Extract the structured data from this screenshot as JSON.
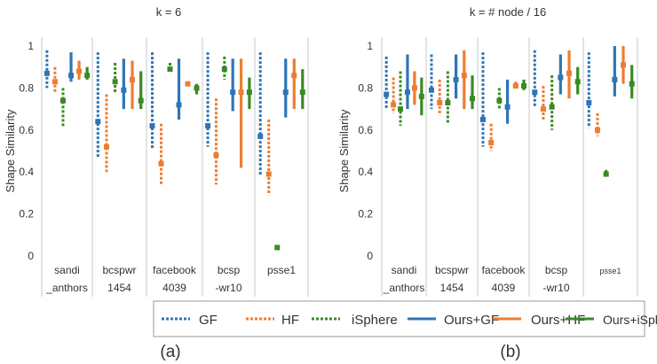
{
  "figure": {
    "caption_a": "(a)",
    "caption_b": "(b)"
  },
  "legend": {
    "items": [
      {
        "label": "GF",
        "color": "#2e75b6",
        "dashed": true
      },
      {
        "label": "HF",
        "color": "#ed7d31",
        "dashed": true
      },
      {
        "label": "iSphere",
        "color": "#3a8a24",
        "dashed": true
      },
      {
        "label": "Ours+GF",
        "color": "#2e75b6",
        "dashed": false
      },
      {
        "label": "Ours+HF",
        "color": "#ed7d31",
        "dashed": false
      },
      {
        "label": "Ours+iSphere",
        "color": "#3a8a24",
        "dashed": false
      }
    ]
  },
  "chart_data": [
    {
      "type": "box",
      "title": "k = 6",
      "ylabel": "Shape Similarity",
      "ylim": [
        0,
        1.05
      ],
      "yticks": [
        "0",
        "0.2",
        "0.4",
        "0.6",
        "0.8",
        "1"
      ],
      "categories": [
        {
          "line1": "sandi",
          "line2": "_anthors"
        },
        {
          "line1": "bcspwr",
          "line2": "1454"
        },
        {
          "line1": "facebook",
          "line2": "4039"
        },
        {
          "line1": "bcsp",
          "line2": "-wr10"
        },
        {
          "line1": "psse1",
          "line2": ""
        }
      ],
      "series": [
        {
          "name": "GF",
          "data": [
            [
              0.8,
              0.98,
              0.87
            ],
            [
              0.47,
              0.97,
              0.64
            ],
            [
              0.51,
              0.97,
              0.62
            ],
            [
              0.52,
              0.97,
              0.62
            ],
            [
              0.38,
              0.97,
              0.57
            ]
          ]
        },
        {
          "name": "HF",
          "data": [
            [
              0.78,
              0.9,
              0.83
            ],
            [
              0.4,
              0.77,
              0.52
            ],
            [
              0.34,
              0.63,
              0.44
            ],
            [
              0.34,
              0.75,
              0.48
            ],
            [
              0.29,
              0.65,
              0.39
            ]
          ]
        },
        {
          "name": "iSphere",
          "data": [
            [
              0.61,
              0.8,
              0.74
            ],
            [
              0.78,
              0.92,
              0.83
            ],
            [
              0.88,
              0.92,
              0.89
            ],
            [
              0.84,
              0.95,
              0.89
            ],
            [
              0.03,
              0.05,
              0.04
            ]
          ]
        },
        {
          "name": "Ours+GF",
          "data": [
            [
              0.83,
              0.97,
              0.86
            ],
            [
              0.7,
              0.94,
              0.79
            ],
            [
              0.65,
              0.94,
              0.72
            ],
            [
              0.69,
              0.94,
              0.78
            ],
            [
              0.66,
              0.94,
              0.78
            ]
          ]
        },
        {
          "name": "Ours+HF",
          "data": [
            [
              0.84,
              0.93,
              0.88
            ],
            [
              0.7,
              0.93,
              0.84
            ],
            [
              0.81,
              0.83,
              0.82
            ],
            [
              0.42,
              0.94,
              0.78
            ],
            [
              0.7,
              0.94,
              0.86
            ]
          ]
        },
        {
          "name": "Ours+iSphere",
          "data": [
            [
              0.84,
              0.9,
              0.86
            ],
            [
              0.7,
              0.88,
              0.74
            ],
            [
              0.77,
              0.82,
              0.8
            ],
            [
              0.7,
              0.85,
              0.78
            ],
            [
              0.7,
              0.89,
              0.78
            ]
          ]
        }
      ]
    },
    {
      "type": "box",
      "title": "k = # node / 16",
      "ylabel": "Shape Similarity",
      "ylim": [
        0,
        1.05
      ],
      "yticks": [
        "0",
        "0.2",
        "0.4",
        "0.6",
        "0.8",
        "1"
      ],
      "categories": [
        {
          "line1": "sandi",
          "line2": "_anthors"
        },
        {
          "line1": "bcspwr",
          "line2": "1454"
        },
        {
          "line1": "facebook",
          "line2": "4039"
        },
        {
          "line1": "bcsp",
          "line2": "-wr10"
        },
        {
          "line1": "psse1",
          "line2": ""
        }
      ],
      "series": [
        {
          "name": "GF",
          "data": [
            [
              0.7,
              0.95,
              0.77
            ],
            [
              0.7,
              0.96,
              0.79
            ],
            [
              0.52,
              0.97,
              0.65
            ],
            [
              0.71,
              0.98,
              0.78
            ],
            [
              0.61,
              0.97,
              0.73
            ]
          ]
        },
        {
          "name": "HF",
          "data": [
            [
              0.68,
              0.85,
              0.72
            ],
            [
              0.67,
              0.84,
              0.73
            ],
            [
              0.5,
              0.63,
              0.54
            ],
            [
              0.65,
              0.81,
              0.7
            ],
            [
              0.57,
              0.68,
              0.6
            ]
          ]
        },
        {
          "name": "iSphere",
          "data": [
            [
              0.62,
              0.88,
              0.7
            ],
            [
              0.63,
              0.88,
              0.73
            ],
            [
              0.7,
              0.8,
              0.74
            ],
            [
              0.6,
              0.86,
              0.71
            ],
            [
              0.38,
              0.41,
              0.39
            ]
          ]
        },
        {
          "name": "Ours+GF",
          "data": [
            [
              0.7,
              0.96,
              0.78
            ],
            [
              0.75,
              0.96,
              0.84
            ],
            [
              0.63,
              0.84,
              0.71
            ],
            [
              0.77,
              0.96,
              0.85
            ],
            [
              0.76,
              1.0,
              0.84
            ]
          ]
        },
        {
          "name": "Ours+HF",
          "data": [
            [
              0.72,
              0.88,
              0.8
            ],
            [
              0.7,
              0.98,
              0.86
            ],
            [
              0.8,
              0.83,
              0.81
            ],
            [
              0.75,
              0.98,
              0.87
            ],
            [
              0.82,
              1.0,
              0.91
            ]
          ]
        },
        {
          "name": "Ours+iSphere",
          "data": [
            [
              0.67,
              0.85,
              0.76
            ],
            [
              0.7,
              0.86,
              0.75
            ],
            [
              0.79,
              0.84,
              0.81
            ],
            [
              0.77,
              0.9,
              0.83
            ],
            [
              0.75,
              0.91,
              0.82
            ]
          ]
        }
      ]
    }
  ]
}
